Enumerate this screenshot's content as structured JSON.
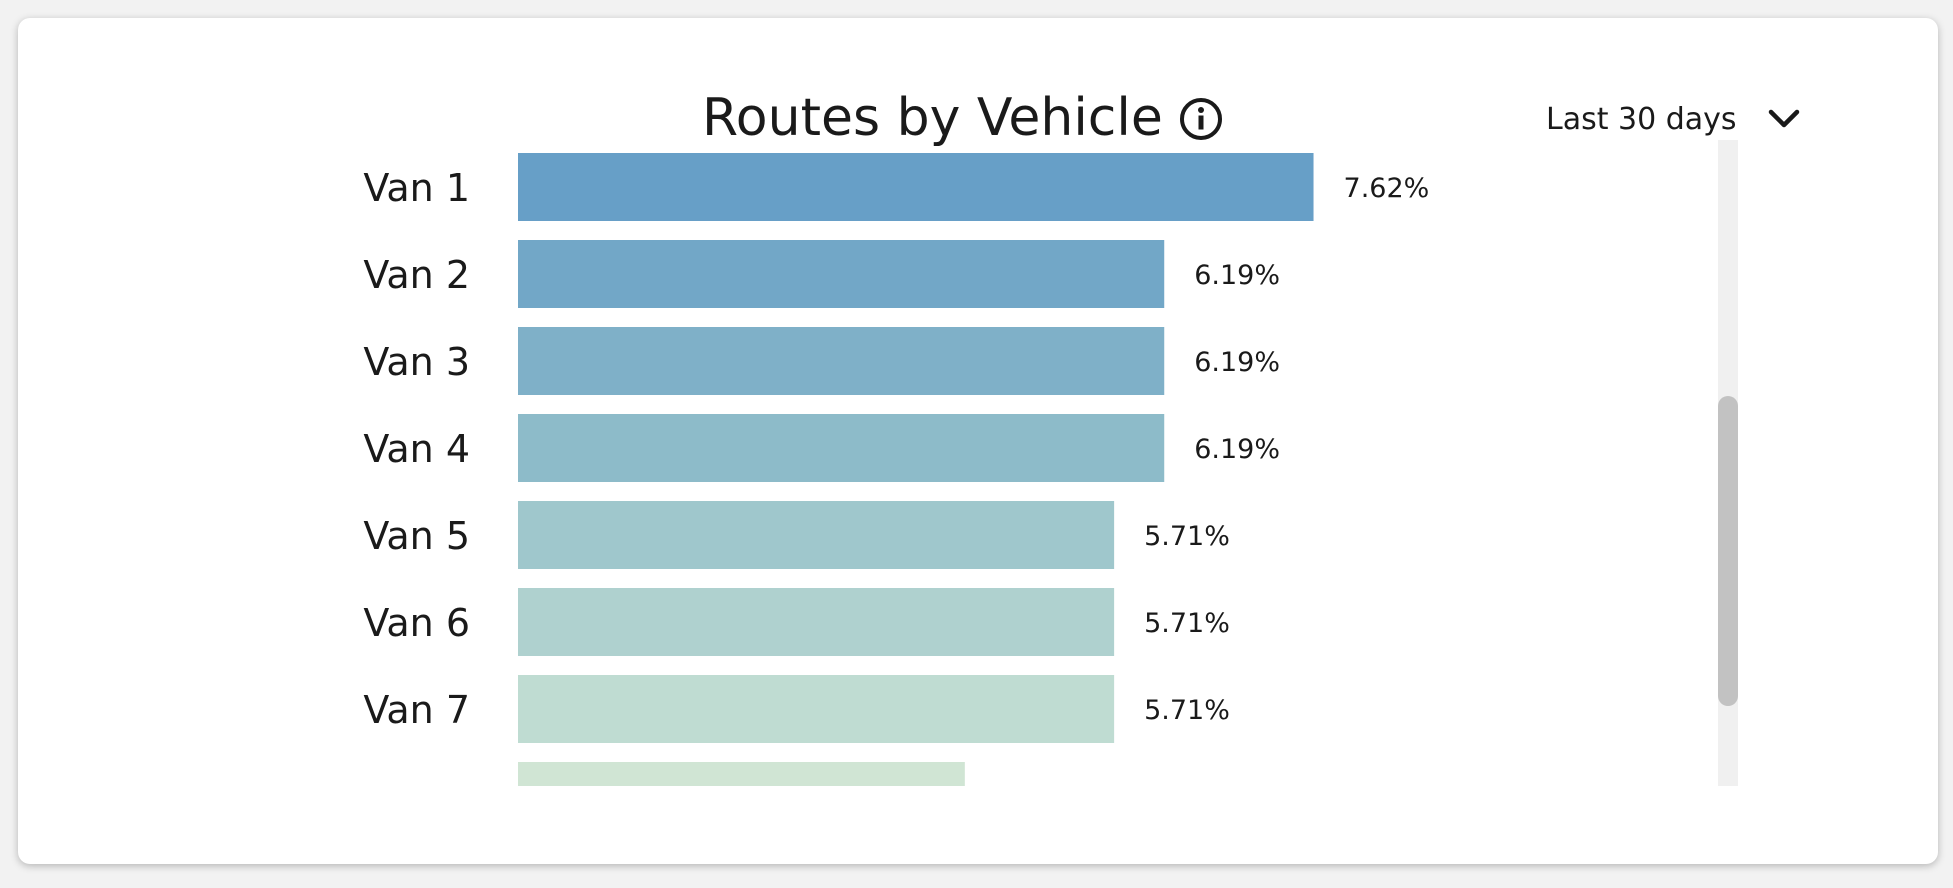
{
  "widget": {
    "title": "Routes by Vehicle",
    "info_icon": "info-circle-icon",
    "period_selector": {
      "selected": "Last 30 days",
      "icon": "chevron-down-icon"
    }
  },
  "chart_data": {
    "type": "bar",
    "orientation": "horizontal",
    "title": "Routes by Vehicle",
    "xlabel": "",
    "ylabel": "",
    "categories": [
      "Van 1",
      "Van 2",
      "Van 3",
      "Van 4",
      "Van 5",
      "Van 6",
      "Van 7",
      ""
    ],
    "values": [
      7.62,
      6.19,
      6.19,
      6.19,
      5.71,
      5.71,
      5.71,
      4.28
    ],
    "value_labels": [
      "7.62%",
      "6.19%",
      "6.19%",
      "6.19%",
      "5.71%",
      "5.71%",
      "5.71%",
      ""
    ],
    "bar_colors": [
      "#679fc7",
      "#72a7c7",
      "#7fb0c8",
      "#8dbbc9",
      "#9fc7cc",
      "#afd1cf",
      "#bfdcd2",
      "#d0e5d4"
    ],
    "grid": false,
    "legend": "none"
  }
}
